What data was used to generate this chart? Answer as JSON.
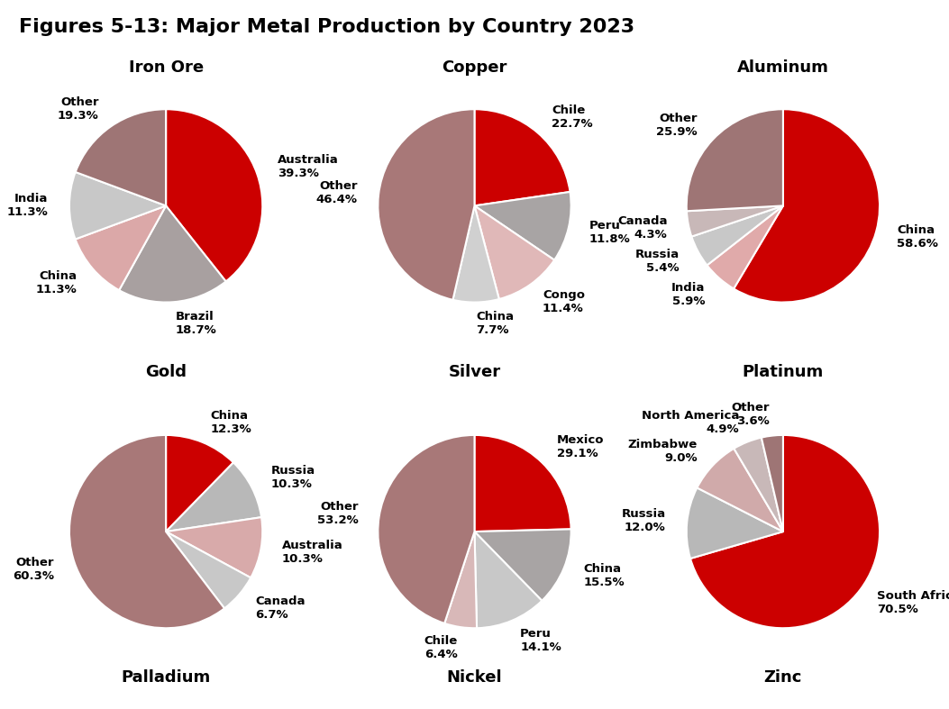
{
  "title": "Figures 5-13: Major Metal Production by Country 2023",
  "charts": [
    {
      "name": "Iron Ore",
      "top_title": "Iron Ore",
      "bottom_title": "Palladium",
      "labels": [
        "Australia",
        "Brazil",
        "China",
        "India",
        "Other"
      ],
      "values": [
        39.3,
        18.7,
        11.3,
        11.3,
        19.3
      ],
      "colors": [
        "#CC0000",
        "#A8A0A0",
        "#DBA8A8",
        "#C8C8C8",
        "#9E7575"
      ]
    },
    {
      "name": "Copper",
      "top_title": "Copper",
      "bottom_title": "Nickel",
      "labels": [
        "Chile",
        "Peru",
        "Congo",
        "China",
        "Other"
      ],
      "values": [
        22.7,
        11.8,
        11.4,
        7.7,
        46.4
      ],
      "colors": [
        "#CC0000",
        "#A8A0A0",
        "#E0B5B5",
        "#D2D2D2",
        "#A87878"
      ]
    },
    {
      "name": "Aluminum",
      "top_title": "Aluminum",
      "bottom_title": "Zinc",
      "labels": [
        "China",
        "India",
        "Russia",
        "Canada",
        "Other"
      ],
      "values": [
        58.6,
        5.9,
        5.4,
        4.3,
        25.9
      ],
      "colors": [
        "#CC0000",
        "#E0AAAA",
        "#C8C8C8",
        "#C8B8B8",
        "#9E7575"
      ]
    },
    {
      "name": "Gold",
      "top_title": "Gold",
      "bottom_title": "Palladium",
      "labels": [
        "China",
        "Russia",
        "Australia",
        "Canada",
        "Other"
      ],
      "values": [
        12.3,
        10.3,
        10.3,
        6.7,
        60.3
      ],
      "colors": [
        "#CC0000",
        "#B0B0B0",
        "#D8AAAA",
        "#C0C0C0",
        "#A87878"
      ]
    },
    {
      "name": "Silver",
      "top_title": "Silver",
      "bottom_title": "Nickel",
      "labels": [
        "Mexico",
        "China",
        "Peru",
        "Chile",
        "Other"
      ],
      "values": [
        29.1,
        15.5,
        14.1,
        6.4,
        53.2
      ],
      "colors": [
        "#CC0000",
        "#A8A0A0",
        "#C8C8C8",
        "#D8B8B8",
        "#A87878"
      ]
    },
    {
      "name": "Platinum",
      "top_title": "Platinum",
      "bottom_title": "Zinc",
      "labels": [
        "South Africa",
        "Russia",
        "Zimbabwe",
        "North America",
        "Other"
      ],
      "values": [
        70.5,
        12.0,
        9.0,
        4.9,
        3.6
      ],
      "colors": [
        "#CC0000",
        "#B8B8B8",
        "#D0AAAA",
        "#C8B8B8",
        "#9E7575"
      ]
    }
  ],
  "row1_top_titles": [
    "Iron Ore",
    "Copper",
    "Aluminum"
  ],
  "row2_top_titles": [
    "Gold",
    "Silver",
    "Platinum"
  ],
  "row2_bottom_titles": [
    "Palladium",
    "Nickel",
    "Zinc"
  ],
  "background_color": "#FFFFFF",
  "title_fontsize": 16,
  "subtitle_fontsize": 13,
  "label_fontsize": 9.5
}
